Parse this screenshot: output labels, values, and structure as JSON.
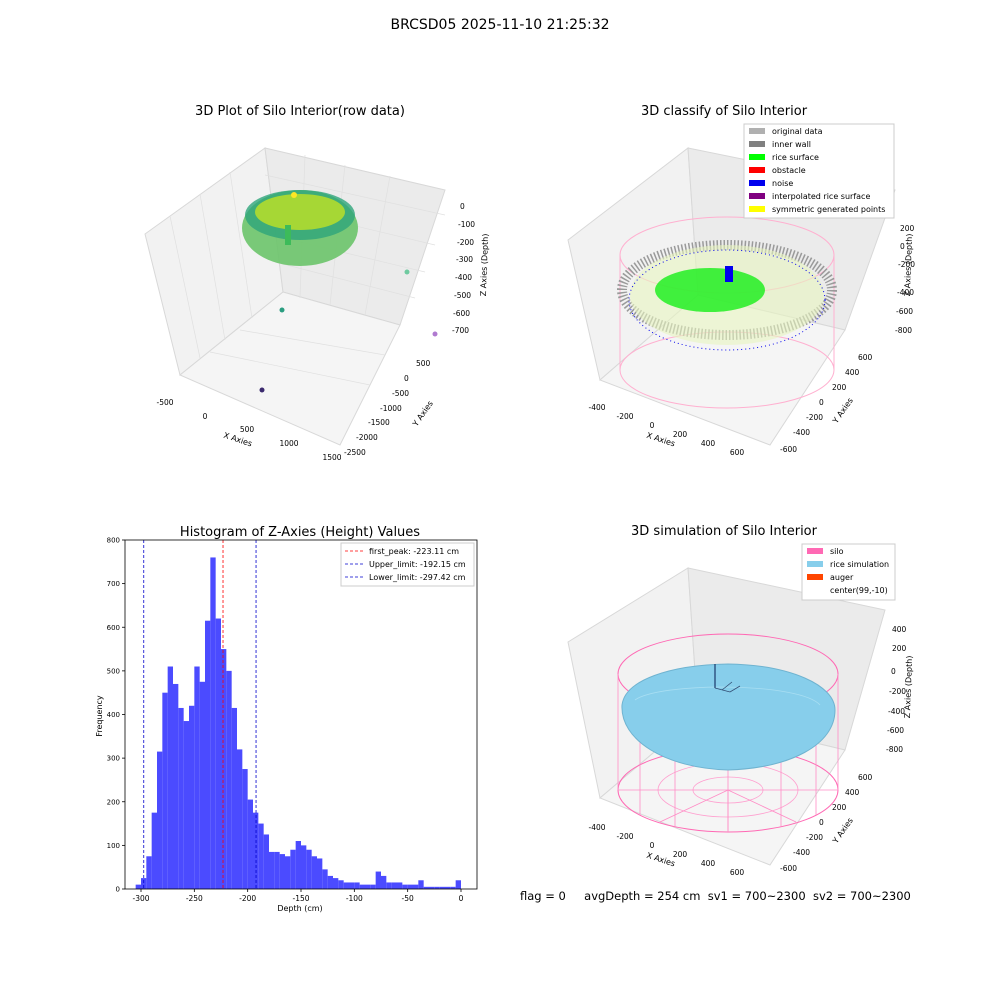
{
  "figure": {
    "suptitle": "BRCSD05 2025-11-10 21:25:32"
  },
  "panels": {
    "raw": {
      "title": "3D Plot of Silo Interior(row data)",
      "x_label": "X Axies",
      "y_label": "Y Axies",
      "z_label": "Z Axies (Depth)",
      "x_ticks": [
        "-500",
        "0",
        "500",
        "1000",
        "1500"
      ],
      "y_ticks": [
        "500",
        "0",
        "-500",
        "-1000",
        "-1500",
        "-2000",
        "-2500"
      ],
      "z_ticks": [
        "0",
        "-100",
        "-200",
        "-300",
        "-400",
        "-500",
        "-600",
        "-700"
      ]
    },
    "classify": {
      "title": "3D classify of Silo Interior",
      "x_label": "X Axies",
      "y_label": "Y Axies",
      "z_label": "Z Axies (Depth)",
      "x_ticks": [
        "-400",
        "-200",
        "0",
        "200",
        "400",
        "600"
      ],
      "y_ticks": [
        "600",
        "400",
        "200",
        "0",
        "-200",
        "-400",
        "-600"
      ],
      "z_ticks": [
        "200",
        "0",
        "-200",
        "-400",
        "-600",
        "-800"
      ],
      "legend": [
        {
          "label": "original data",
          "color": "#b0b0b0"
        },
        {
          "label": "inner wall",
          "color": "#808080"
        },
        {
          "label": "rice surface",
          "color": "#00ff00"
        },
        {
          "label": "obstacle",
          "color": "#ff0000"
        },
        {
          "label": "noise",
          "color": "#0000ee"
        },
        {
          "label": "interpolated rice surface",
          "color": "#800080"
        },
        {
          "label": "symmetric generated points",
          "color": "#ffff00"
        }
      ]
    },
    "simulation": {
      "title": "3D simulation of Silo Interior",
      "x_label": "X Axies",
      "y_label": "Y Axies",
      "z_label": "Z Axies (Depth)",
      "x_ticks": [
        "-400",
        "-200",
        "0",
        "200",
        "400",
        "600"
      ],
      "y_ticks": [
        "600",
        "400",
        "200",
        "0",
        "-200",
        "-400",
        "-600"
      ],
      "z_ticks": [
        "400",
        "200",
        "0",
        "-200",
        "-400",
        "-600",
        "-800"
      ],
      "legend": [
        {
          "label": "silo",
          "color": "#ff69b4"
        },
        {
          "label": "rice simulation",
          "color": "#87ceeb"
        },
        {
          "label": "auger",
          "color": "#ff4500"
        },
        {
          "label": "center(99,-10)",
          "color": "#ffffff"
        }
      ]
    }
  },
  "chart_data": {
    "type": "bar",
    "title": "Histogram of Z-Axies (Height) Values",
    "xlabel": "Depth (cm)",
    "ylabel": "Frequency",
    "xlim": [
      -315,
      15
    ],
    "ylim": [
      0,
      800
    ],
    "x_ticks": [
      -300,
      -250,
      -200,
      -150,
      -100,
      -50,
      0
    ],
    "y_ticks": [
      0,
      100,
      200,
      300,
      400,
      500,
      600,
      700,
      800
    ],
    "bar_color": "#4b4bff",
    "bin_edges": [
      -305,
      -300,
      -295,
      -290,
      -285,
      -280,
      -275,
      -270,
      -265,
      -260,
      -255,
      -250,
      -245,
      -240,
      -235,
      -230,
      -225,
      -220,
      -215,
      -210,
      -205,
      -200,
      -195,
      -190,
      -185,
      -180,
      -175,
      -170,
      -165,
      -160,
      -155,
      -150,
      -145,
      -140,
      -135,
      -130,
      -125,
      -120,
      -115,
      -110,
      -105,
      -100,
      -95,
      -90,
      -85,
      -80,
      -75,
      -70,
      -65,
      -60,
      -55,
      -50,
      -45,
      -40,
      -35,
      -30,
      -25,
      -20,
      -15,
      -10,
      -5,
      0
    ],
    "values": [
      10,
      25,
      75,
      175,
      315,
      450,
      510,
      470,
      415,
      385,
      420,
      510,
      475,
      615,
      760,
      620,
      550,
      500,
      415,
      320,
      275,
      205,
      175,
      150,
      125,
      85,
      85,
      80,
      75,
      90,
      110,
      100,
      90,
      75,
      70,
      45,
      30,
      25,
      20,
      15,
      15,
      15,
      10,
      10,
      10,
      40,
      30,
      15,
      15,
      15,
      10,
      10,
      10,
      20,
      5,
      5,
      5,
      5,
      5,
      5,
      20
    ],
    "lines": [
      {
        "label": "first_peak: -223.11 cm",
        "x": -223.11,
        "color": "#ff0000"
      },
      {
        "label": "Upper_limit: -192.15 cm",
        "x": -192.15,
        "color": "#0000cc"
      },
      {
        "label": "Lower_limit: -297.42 cm",
        "x": -297.42,
        "color": "#0000cc"
      }
    ],
    "legend_position": "upper right"
  },
  "footer": {
    "flag": "flag = 0",
    "avgdepth": "avgDepth = 254 cm",
    "sv1": "sv1 = 700~2300",
    "sv2": "sv2 = 700~2300"
  }
}
